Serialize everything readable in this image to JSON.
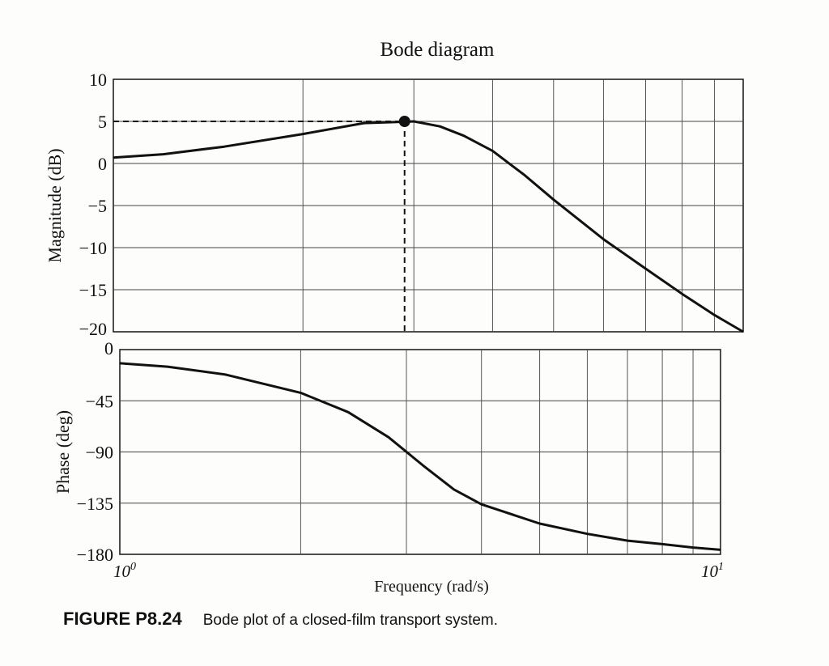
{
  "chart_data": [
    {
      "type": "line",
      "title": "Bode diagram",
      "xlabel": "",
      "ylabel": "Magnitude (dB)",
      "xscale": "log",
      "xlim": [
        1,
        10
      ],
      "ylim": [
        -20,
        10
      ],
      "yticks": [
        "10",
        "5",
        "0",
        "−5",
        "−10",
        "−15",
        "−20"
      ],
      "grid": true,
      "series": [
        {
          "x": [
            1.0,
            1.2,
            1.5,
            2.0,
            2.5,
            3.0,
            3.3,
            3.6,
            4.0,
            4.5,
            5.0,
            6.0,
            7.0,
            8.0,
            9.0,
            10.0
          ],
          "y": [
            0.7,
            1.1,
            2.0,
            3.5,
            4.8,
            5.0,
            4.4,
            3.3,
            1.5,
            -1.4,
            -4.3,
            -9.0,
            -12.5,
            -15.5,
            -18.0,
            -20.0
          ]
        }
      ],
      "annotations": [
        {
          "type": "peak-marker",
          "x": 2.9,
          "y": 5.0,
          "dashed_guides": true
        }
      ]
    },
    {
      "type": "line",
      "xlabel": "Frequency (rad/s)",
      "ylabel": "Phase (deg)",
      "xscale": "log",
      "xlim": [
        1,
        10
      ],
      "ylim": [
        -180,
        0
      ],
      "yticks": [
        "0",
        "−45",
        "−90",
        "−135",
        "−180"
      ],
      "xticks": [
        {
          "value": 1,
          "base": "10",
          "exp": "0"
        },
        {
          "value": 10,
          "base": "10",
          "exp": "1"
        }
      ],
      "grid": true,
      "series": [
        {
          "x": [
            1.0,
            1.2,
            1.5,
            2.0,
            2.4,
            2.8,
            3.2,
            3.6,
            4.0,
            5.0,
            6.0,
            7.0,
            8.0,
            9.0,
            10.0
          ],
          "y": [
            -12,
            -15,
            -22,
            -38,
            -55,
            -77,
            -102,
            -123,
            -136,
            -153,
            -162,
            -168,
            -171,
            -174,
            -176
          ]
        }
      ]
    }
  ],
  "caption": {
    "label": "FIGURE P8.24",
    "text": "Bode plot of a closed-film transport system."
  }
}
